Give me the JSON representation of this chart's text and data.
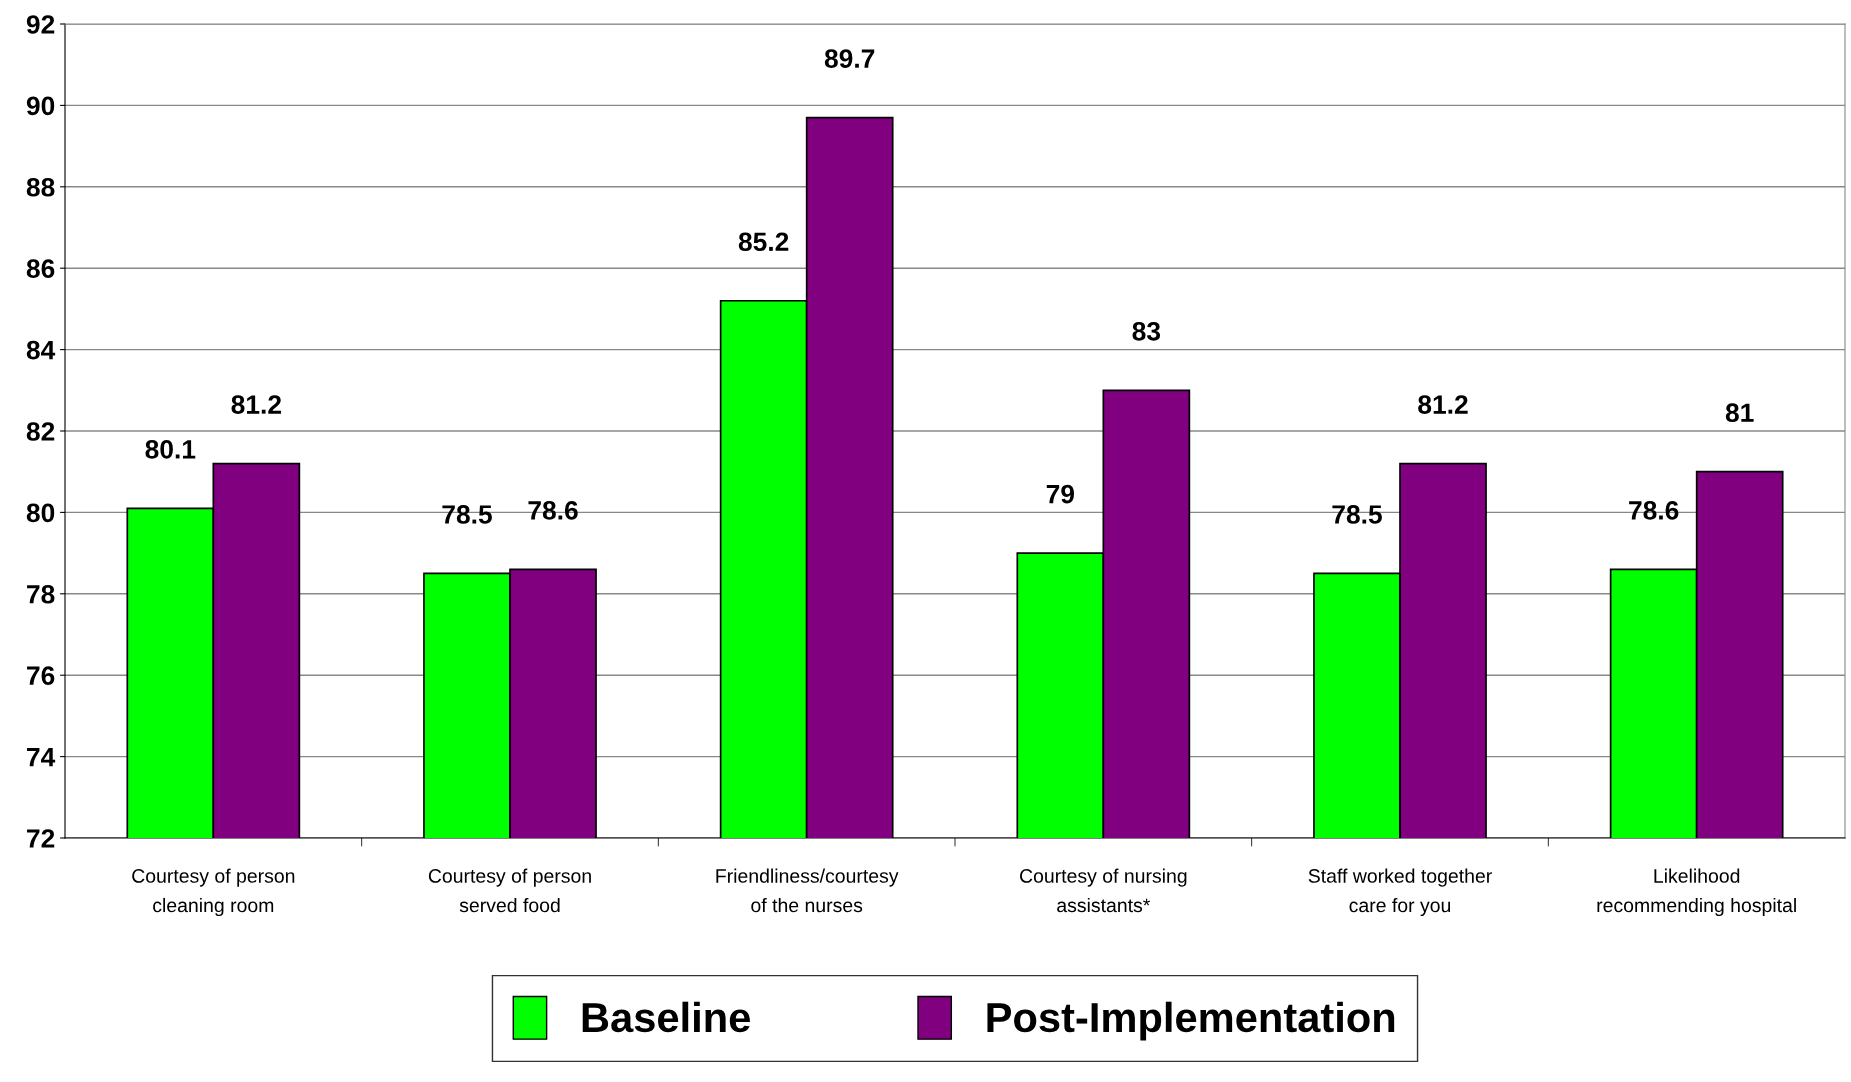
{
  "chart_data": {
    "type": "bar",
    "categories": [
      "Courtesy of person cleaning room",
      "Courtesy of person served food",
      "Friendliness/courtesy of the nurses",
      "Courtesy of nursing assistants*",
      "Staff worked together care for you",
      "Likelihood recommending hospital"
    ],
    "series": [
      {
        "name": "Baseline",
        "color": "#00ff00",
        "values": [
          80.1,
          78.5,
          85.2,
          79,
          78.5,
          78.6
        ]
      },
      {
        "name": "Post-Implementation",
        "color": "#800080",
        "values": [
          81.2,
          78.6,
          89.7,
          83,
          81.2,
          81
        ]
      }
    ],
    "ylim": [
      72,
      92
    ],
    "yticks": [
      72,
      74,
      76,
      78,
      80,
      82,
      84,
      86,
      88,
      90,
      92
    ],
    "grid": "y",
    "legend": "bottom",
    "data_labels": true
  }
}
